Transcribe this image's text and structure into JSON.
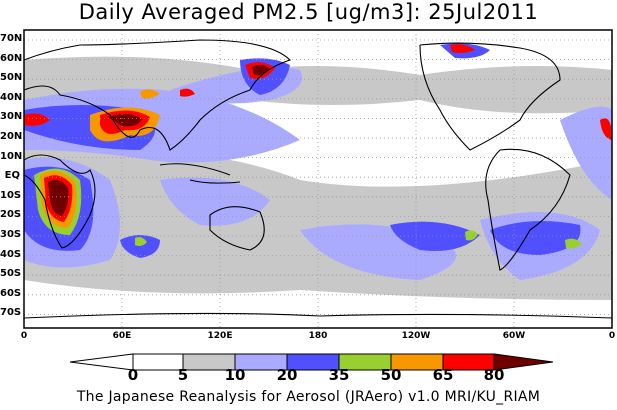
{
  "title": "Daily Averaged PM2.5 [ug/m3]: 25Jul2011",
  "lat_labels": [
    "70N",
    "60N",
    "50N",
    "40N",
    "30N",
    "20N",
    "10N",
    "EQ",
    "10S",
    "20S",
    "30S",
    "40S",
    "50S",
    "60S",
    "70S"
  ],
  "lon_labels": [
    "0",
    "60E",
    "120E",
    "180",
    "120W",
    "60W",
    "0"
  ],
  "colorbar": {
    "levels": [
      "0",
      "5",
      "10",
      "20",
      "35",
      "50",
      "65",
      "80"
    ],
    "colors": [
      "#ffffff",
      "#ffffff",
      "#c8c8c8",
      "#aaaaff",
      "#5050ff",
      "#98d030",
      "#f89800",
      "#ff0000",
      "#700000"
    ]
  },
  "footer": "The Japanese Reanalysis for Aerosol (JRAero) v1.0 MRI/KU_RIAM"
}
